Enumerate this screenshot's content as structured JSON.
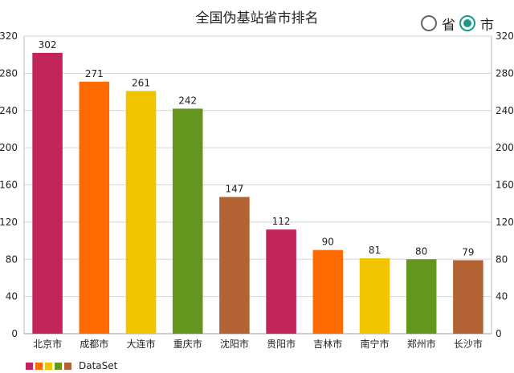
{
  "chart_data": {
    "type": "bar",
    "title": "全国伪基站省市排名",
    "categories": [
      "北京市",
      "成都市",
      "大连市",
      "重庆市",
      "沈阳市",
      "贵阳市",
      "吉林市",
      "南宁市",
      "郑州市",
      "长沙市"
    ],
    "series": [
      {
        "name": "DataSet",
        "values": [
          302,
          271,
          261,
          242,
          147,
          112,
          90,
          81,
          80,
          79
        ]
      }
    ],
    "ylim": [
      0,
      320
    ],
    "yticks": [
      0,
      40,
      80,
      120,
      160,
      200,
      240,
      280,
      320
    ],
    "right_axis": true,
    "grid": true,
    "legend": "bottom-left",
    "colors": [
      "#c2255c",
      "#ff6a00",
      "#f2c400",
      "#64961f",
      "#b36234"
    ]
  },
  "toggles": {
    "province_label": "省",
    "city_label": "市",
    "selected": "city"
  }
}
